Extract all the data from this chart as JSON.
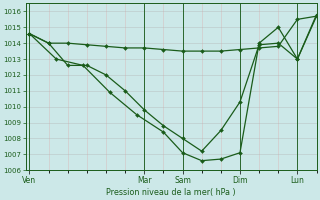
{
  "xlabel": "Pression niveau de la mer( hPa )",
  "ylim": [
    1006,
    1016.5
  ],
  "yticks": [
    1006,
    1007,
    1008,
    1009,
    1010,
    1011,
    1012,
    1013,
    1014,
    1015,
    1016
  ],
  "xtick_labels": [
    "Ven",
    "Mar",
    "Sam",
    "Dim",
    "Lun"
  ],
  "xtick_pos": [
    0,
    3,
    4,
    5.5,
    7
  ],
  "vline_pos": [
    0,
    3,
    4,
    5.5,
    7
  ],
  "xlim": [
    -0.1,
    7.5
  ],
  "bg_color": "#cce8e8",
  "line_color": "#1a5c1a",
  "grid_major_color": "#b0b0b0",
  "grid_minor_color": "#dbb0b0",
  "series1_x": [
    0,
    0.5,
    1.0,
    1.5,
    2.0,
    2.5,
    3.0,
    3.5,
    4.0,
    4.5,
    5.0,
    5.5,
    6.0,
    6.5,
    7.0,
    7.5
  ],
  "series1_y": [
    1014.6,
    1014.0,
    1014.0,
    1013.9,
    1013.8,
    1013.7,
    1013.7,
    1013.6,
    1013.5,
    1013.5,
    1013.5,
    1013.6,
    1013.7,
    1013.8,
    1015.5,
    1015.7
  ],
  "series2_x": [
    0,
    0.5,
    1.0,
    1.5,
    2.0,
    2.5,
    3.0,
    3.5,
    4.0,
    4.5,
    5.0,
    5.5,
    6.0,
    6.5,
    7.0,
    7.5
  ],
  "series2_y": [
    1014.6,
    1014.0,
    1012.6,
    1012.6,
    1012.0,
    1011.0,
    1009.8,
    1008.8,
    1008.0,
    1007.2,
    1008.5,
    1010.3,
    1013.9,
    1014.0,
    1013.0,
    1015.8
  ],
  "series3_x": [
    0,
    0.7,
    1.4,
    2.1,
    2.8,
    3.5,
    4.0,
    4.5,
    5.0,
    5.5,
    6.0,
    6.5,
    7.0,
    7.5
  ],
  "series3_y": [
    1014.6,
    1013.0,
    1012.6,
    1010.9,
    1009.5,
    1008.4,
    1007.1,
    1006.6,
    1006.7,
    1007.1,
    1014.0,
    1015.0,
    1013.0,
    1015.7
  ]
}
